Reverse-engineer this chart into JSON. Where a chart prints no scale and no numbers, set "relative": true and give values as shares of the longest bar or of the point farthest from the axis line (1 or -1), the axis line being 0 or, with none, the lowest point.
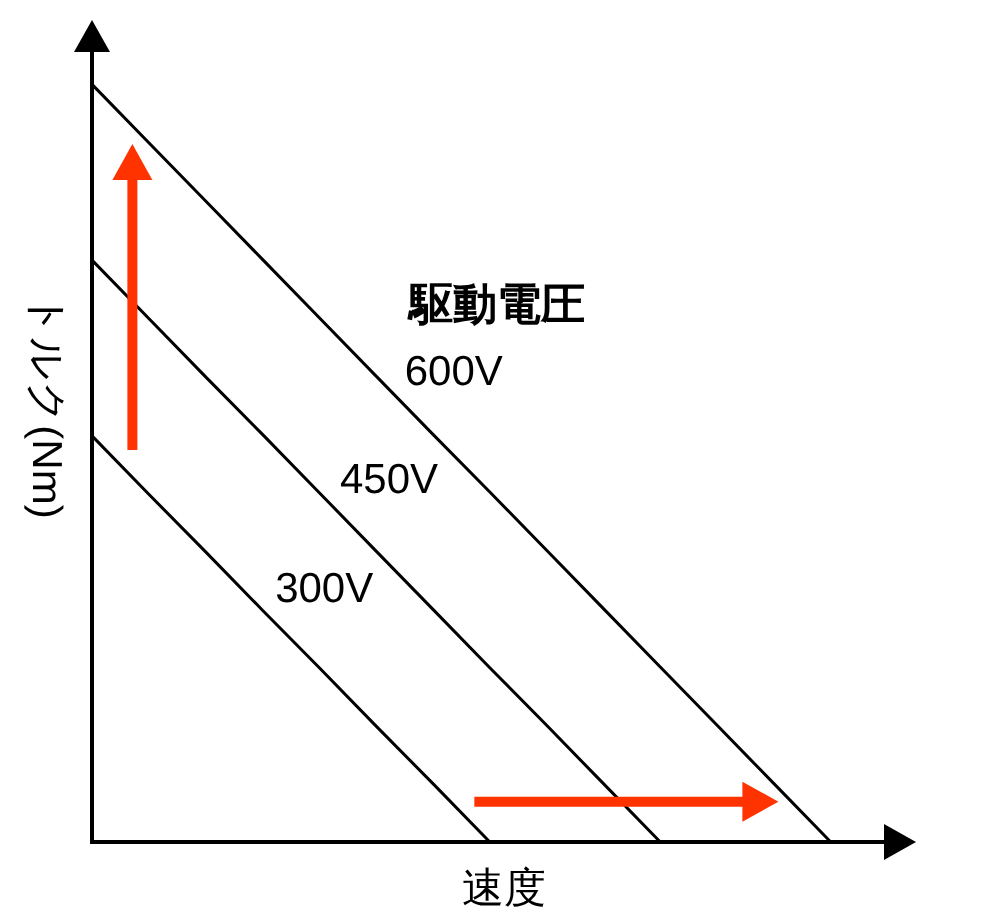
{
  "chart_data": {
    "type": "line",
    "relative": true,
    "xlabel": "速度",
    "ylabel": "トルク(Nm)",
    "annotations": [
      "駆動電圧"
    ],
    "line_style": "solid",
    "categories": [
      null,
      null,
      null,
      null,
      null,
      null,
      null,
      null,
      null,
      null,
      null,
      null,
      null,
      null,
      null
    ],
    "series": [
      {
        "name": "600V",
        "color": "#000000",
        "values": [
          1,
          0.923,
          0.846,
          0.769,
          0.692,
          0.615,
          0.538,
          0.462,
          0.385,
          0.308,
          0.231,
          0.154,
          0.077,
          0,
          null
        ]
      },
      {
        "name": "450V",
        "color": "#000000",
        "values": [
          0.768,
          0.691,
          0.614,
          0.538,
          0.461,
          0.384,
          0.307,
          0.23,
          0.154,
          0.077,
          0,
          null,
          null,
          null,
          null
        ]
      },
      {
        "name": "300V",
        "color": "#000000",
        "values": [
          0.536,
          0.459,
          0.383,
          0.306,
          0.23,
          0.153,
          0.077,
          0,
          null,
          null,
          null,
          null,
          null,
          null,
          null
        ]
      }
    ]
  }
}
